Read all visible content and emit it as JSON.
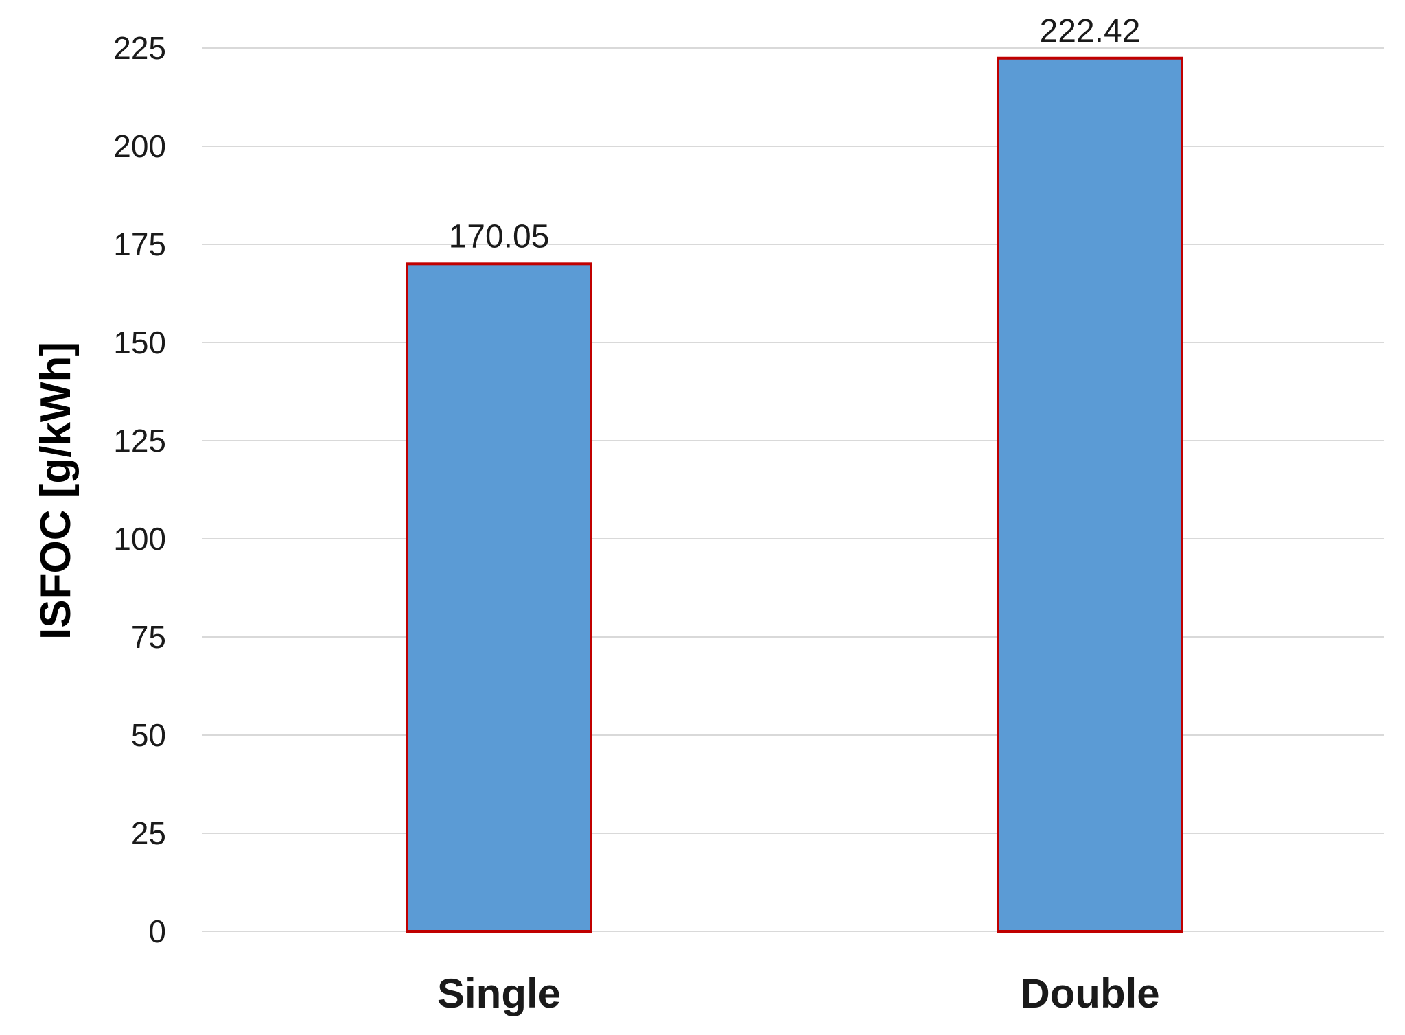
{
  "chart_data": {
    "type": "bar",
    "categories": [
      "Single",
      "Double"
    ],
    "values": [
      170.05,
      222.42
    ],
    "data_labels": [
      "170.05",
      "222.42"
    ],
    "title": "",
    "xlabel": "",
    "ylabel": "ISFOC [g/kWh]",
    "ylim": [
      0,
      225
    ],
    "yticks": [
      0,
      25,
      50,
      75,
      100,
      125,
      150,
      175,
      200,
      225
    ],
    "grid": true,
    "legend": "none",
    "colors": {
      "bar_fill": "#5b9bd5",
      "bar_outline": "#c00000",
      "gridline": "#d9d9d9",
      "text": "#1a1a1a"
    }
  }
}
